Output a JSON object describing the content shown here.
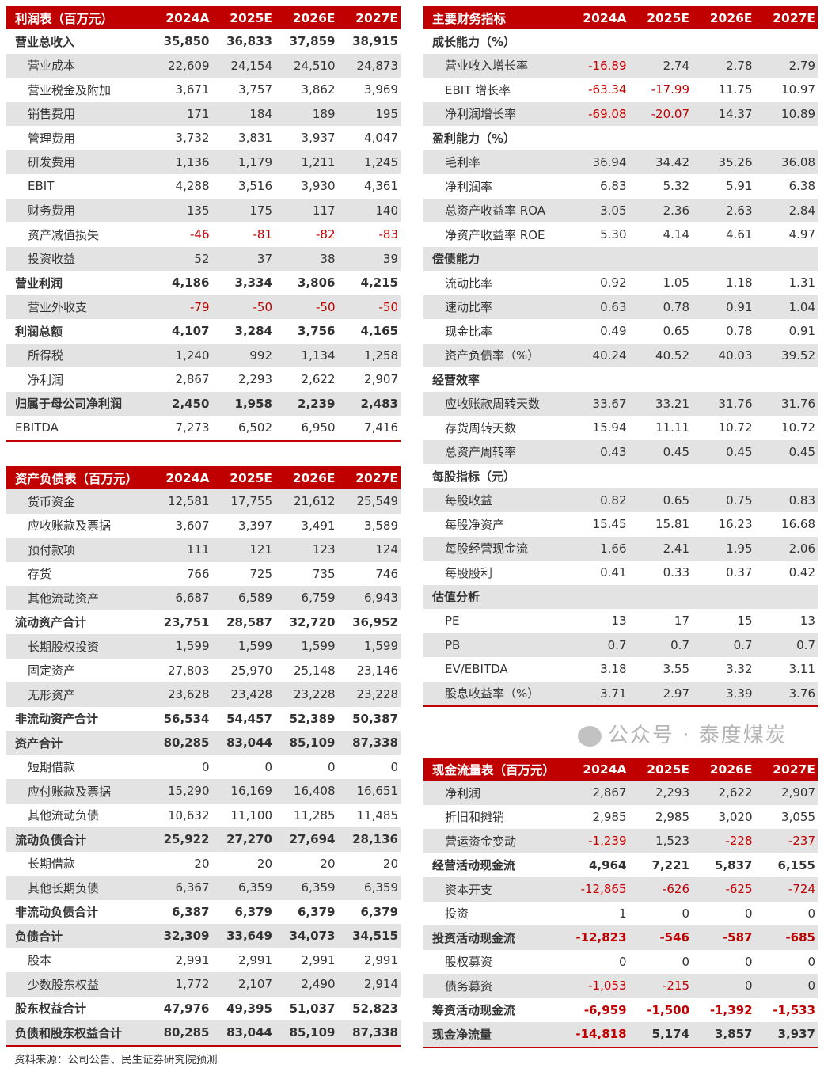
{
  "income": {
    "title": "利润表（百万元）",
    "years": [
      "2024A",
      "2025E",
      "2026E",
      "2027E"
    ],
    "rows": [
      [
        "营业总收入",
        "35,850",
        "36,833",
        "37,859",
        "38,915",
        "b"
      ],
      [
        "营业成本",
        "22,609",
        "24,154",
        "24,510",
        "24,873",
        "i"
      ],
      [
        "营业税金及附加",
        "3,671",
        "3,757",
        "3,862",
        "3,969",
        "i"
      ],
      [
        "销售费用",
        "171",
        "184",
        "189",
        "195",
        "i"
      ],
      [
        "管理费用",
        "3,732",
        "3,831",
        "3,937",
        "4,047",
        "i"
      ],
      [
        "研发费用",
        "1,136",
        "1,179",
        "1,211",
        "1,245",
        "i"
      ],
      [
        "EBIT",
        "4,288",
        "3,516",
        "3,930",
        "4,361",
        "i"
      ],
      [
        "财务费用",
        "135",
        "175",
        "117",
        "140",
        "i"
      ],
      [
        "资产减值损失",
        "-46",
        "-81",
        "-82",
        "-83",
        "i"
      ],
      [
        "投资收益",
        "52",
        "37",
        "38",
        "39",
        "i"
      ],
      [
        "营业利润",
        "4,186",
        "3,334",
        "3,806",
        "4,215",
        "b"
      ],
      [
        "营业外收支",
        "-79",
        "-50",
        "-50",
        "-50",
        "i"
      ],
      [
        "利润总额",
        "4,107",
        "3,284",
        "3,756",
        "4,165",
        "b"
      ],
      [
        "所得税",
        "1,240",
        "992",
        "1,134",
        "1,258",
        "i"
      ],
      [
        "净利润",
        "2,867",
        "2,293",
        "2,622",
        "2,907",
        "i"
      ],
      [
        "归属于母公司净利润",
        "2,450",
        "1,958",
        "2,239",
        "2,483",
        "b"
      ],
      [
        "EBITDA",
        "7,273",
        "6,502",
        "6,950",
        "7,416",
        "n"
      ]
    ]
  },
  "balance": {
    "title": "资产负债表（百万元）",
    "years": [
      "2024A",
      "2025E",
      "2026E",
      "2027E"
    ],
    "rows": [
      [
        "货币资金",
        "12,581",
        "17,755",
        "21,612",
        "25,549",
        "i"
      ],
      [
        "应收账款及票据",
        "3,607",
        "3,397",
        "3,491",
        "3,589",
        "i"
      ],
      [
        "预付款项",
        "111",
        "121",
        "123",
        "124",
        "i"
      ],
      [
        "存货",
        "766",
        "725",
        "735",
        "746",
        "i"
      ],
      [
        "其他流动资产",
        "6,687",
        "6,589",
        "6,759",
        "6,943",
        "i"
      ],
      [
        "流动资产合计",
        "23,751",
        "28,587",
        "32,720",
        "36,952",
        "b"
      ],
      [
        "长期股权投资",
        "1,599",
        "1,599",
        "1,599",
        "1,599",
        "i"
      ],
      [
        "固定资产",
        "27,803",
        "25,970",
        "25,148",
        "23,146",
        "i"
      ],
      [
        "无形资产",
        "23,628",
        "23,428",
        "23,228",
        "23,228",
        "i"
      ],
      [
        "非流动资产合计",
        "56,534",
        "54,457",
        "52,389",
        "50,387",
        "b"
      ],
      [
        "资产合计",
        "80,285",
        "83,044",
        "85,109",
        "87,338",
        "b"
      ],
      [
        "短期借款",
        "0",
        "0",
        "0",
        "0",
        "i"
      ],
      [
        "应付账款及票据",
        "15,290",
        "16,169",
        "16,408",
        "16,651",
        "i"
      ],
      [
        "其他流动负债",
        "10,632",
        "11,100",
        "11,285",
        "11,485",
        "i"
      ],
      [
        "流动负债合计",
        "25,922",
        "27,270",
        "27,694",
        "28,136",
        "b"
      ],
      [
        "长期借款",
        "20",
        "20",
        "20",
        "20",
        "i"
      ],
      [
        "其他长期负债",
        "6,367",
        "6,359",
        "6,359",
        "6,359",
        "i"
      ],
      [
        "非流动负债合计",
        "6,387",
        "6,379",
        "6,379",
        "6,379",
        "b"
      ],
      [
        "负债合计",
        "32,309",
        "33,649",
        "34,073",
        "34,515",
        "b"
      ],
      [
        "股本",
        "2,991",
        "2,991",
        "2,991",
        "2,991",
        "i"
      ],
      [
        "少数股东权益",
        "1,772",
        "2,107",
        "2,490",
        "2,914",
        "i"
      ],
      [
        "股东权益合计",
        "47,976",
        "49,395",
        "51,037",
        "52,823",
        "b"
      ],
      [
        "负债和股东权益合计",
        "80,285",
        "83,044",
        "85,109",
        "87,338",
        "b"
      ]
    ]
  },
  "indicators": {
    "title": "主要财务指标",
    "years": [
      "2024A",
      "2025E",
      "2026E",
      "2027E"
    ],
    "rows": [
      [
        "成长能力（%）",
        "",
        "",
        "",
        "",
        "b"
      ],
      [
        "营业收入增长率",
        "-16.89",
        "2.74",
        "2.78",
        "2.79",
        "i"
      ],
      [
        "EBIT 增长率",
        "-63.34",
        "-17.99",
        "11.75",
        "10.97",
        "i"
      ],
      [
        "净利润增长率",
        "-69.08",
        "-20.07",
        "14.37",
        "10.89",
        "i"
      ],
      [
        "盈利能力（%）",
        "",
        "",
        "",
        "",
        "b"
      ],
      [
        "毛利率",
        "36.94",
        "34.42",
        "35.26",
        "36.08",
        "i"
      ],
      [
        "净利润率",
        "6.83",
        "5.32",
        "5.91",
        "6.38",
        "i"
      ],
      [
        "总资产收益率 ROA",
        "3.05",
        "2.36",
        "2.63",
        "2.84",
        "i"
      ],
      [
        "净资产收益率 ROE",
        "5.30",
        "4.14",
        "4.61",
        "4.97",
        "i"
      ],
      [
        "偿债能力",
        "",
        "",
        "",
        "",
        "b"
      ],
      [
        "流动比率",
        "0.92",
        "1.05",
        "1.18",
        "1.31",
        "i"
      ],
      [
        "速动比率",
        "0.63",
        "0.78",
        "0.91",
        "1.04",
        "i"
      ],
      [
        "现金比率",
        "0.49",
        "0.65",
        "0.78",
        "0.91",
        "i"
      ],
      [
        "资产负债率（%）",
        "40.24",
        "40.52",
        "40.03",
        "39.52",
        "i"
      ],
      [
        "经营效率",
        "",
        "",
        "",
        "",
        "b"
      ],
      [
        "应收账款周转天数",
        "33.67",
        "33.21",
        "31.76",
        "31.76",
        "i"
      ],
      [
        "存货周转天数",
        "15.94",
        "11.11",
        "10.72",
        "10.72",
        "i"
      ],
      [
        "总资产周转率",
        "0.43",
        "0.45",
        "0.45",
        "0.45",
        "i"
      ],
      [
        "每股指标（元）",
        "",
        "",
        "",
        "",
        "b"
      ],
      [
        "每股收益",
        "0.82",
        "0.65",
        "0.75",
        "0.83",
        "i"
      ],
      [
        "每股净资产",
        "15.45",
        "15.81",
        "16.23",
        "16.68",
        "i"
      ],
      [
        "每股经营现金流",
        "1.66",
        "2.41",
        "1.95",
        "2.06",
        "i"
      ],
      [
        "每股股利",
        "0.41",
        "0.33",
        "0.37",
        "0.42",
        "i"
      ],
      [
        "估值分析",
        "",
        "",
        "",
        "",
        "b"
      ],
      [
        "PE",
        "13",
        "17",
        "15",
        "13",
        "i"
      ],
      [
        "PB",
        "0.7",
        "0.7",
        "0.7",
        "0.7",
        "i"
      ],
      [
        "EV/EBITDA",
        "3.18",
        "3.55",
        "3.32",
        "3.11",
        "i"
      ],
      [
        "股息收益率（%）",
        "3.71",
        "2.97",
        "3.39",
        "3.76",
        "i"
      ]
    ]
  },
  "cashflow": {
    "title": "现金流量表（百万元）",
    "years": [
      "2024A",
      "2025E",
      "2026E",
      "2027E"
    ],
    "rows": [
      [
        "净利润",
        "2,867",
        "2,293",
        "2,622",
        "2,907",
        "i"
      ],
      [
        "折旧和摊销",
        "2,985",
        "2,985",
        "3,020",
        "3,055",
        "i"
      ],
      [
        "营运资金变动",
        "-1,239",
        "1,523",
        "-228",
        "-237",
        "i"
      ],
      [
        "经营活动现金流",
        "4,964",
        "7,221",
        "5,837",
        "6,155",
        "b"
      ],
      [
        "资本开支",
        "-12,865",
        "-626",
        "-625",
        "-724",
        "i"
      ],
      [
        "投资",
        "1",
        "0",
        "0",
        "0",
        "i"
      ],
      [
        "投资活动现金流",
        "-12,823",
        "-546",
        "-587",
        "-685",
        "b"
      ],
      [
        "股权募资",
        "0",
        "0",
        "0",
        "0",
        "i"
      ],
      [
        "债务募资",
        "-1,053",
        "-215",
        "0",
        "0",
        "i"
      ],
      [
        "筹资活动现金流",
        "-6,959",
        "-1,500",
        "-1,392",
        "-1,533",
        "b"
      ],
      [
        "现金净流量",
        "-14,818",
        "5,174",
        "3,857",
        "3,937",
        "b"
      ]
    ]
  },
  "source": "资料来源：公司公告、民生证券研究院预测",
  "watermark": "公众号 · 泰度煤炭",
  "colors": {
    "header": "#c00000",
    "negative": "#c00000",
    "stripe": "#e3e3e3"
  }
}
